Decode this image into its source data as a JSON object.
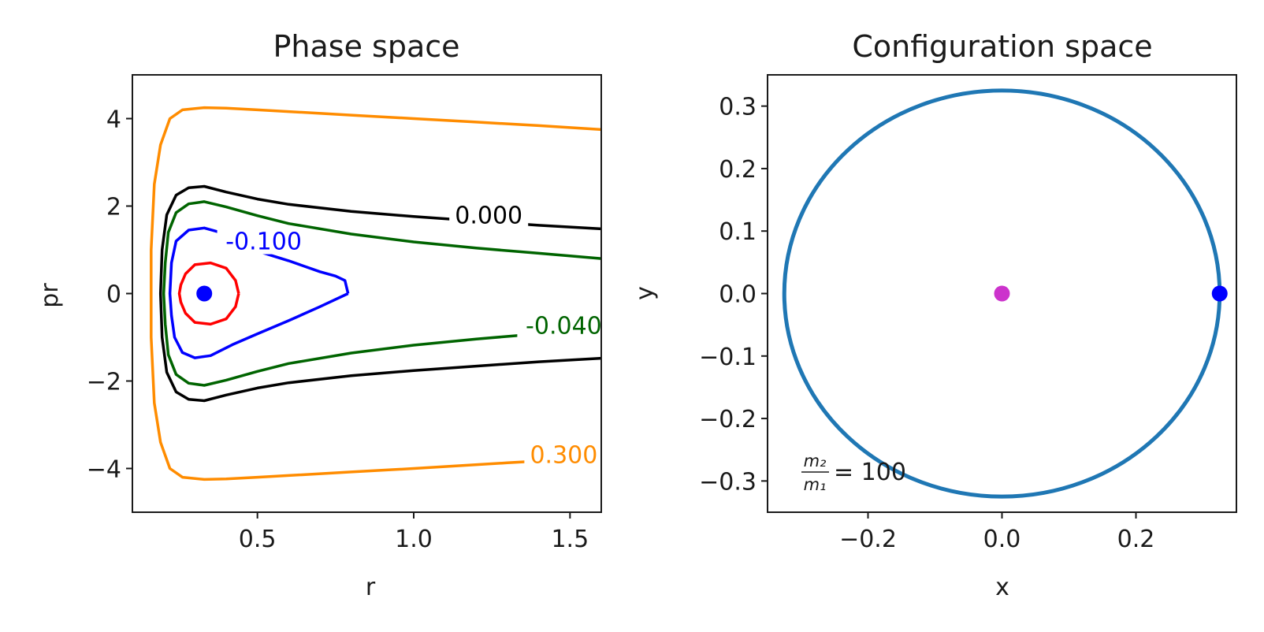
{
  "chart_data": [
    {
      "type": "contour",
      "title": "Phase space",
      "xlabel": "r",
      "ylabel": "pr",
      "xlim": [
        0.1,
        1.6
      ],
      "ylim": [
        -5,
        5
      ],
      "xticks": [
        0.5,
        1.0,
        1.5
      ],
      "xtick_labels": [
        "0.5",
        "1.0",
        "1.5"
      ],
      "yticks": [
        4,
        2,
        0,
        -2,
        -4
      ],
      "ytick_labels": [
        "4",
        "2",
        "0",
        "−2",
        "−4"
      ],
      "grid": false,
      "contours": [
        {
          "level_label": "0.300",
          "color": "#ff8c00",
          "top": [
            [
              1.6,
              3.75
            ],
            [
              1.4,
              3.84
            ],
            [
              1.2,
              3.92
            ],
            [
              1.0,
              4.0
            ],
            [
              0.8,
              4.08
            ],
            [
              0.6,
              4.16
            ],
            [
              0.5,
              4.2
            ],
            [
              0.4,
              4.24
            ],
            [
              0.33,
              4.25
            ],
            [
              0.26,
              4.2
            ],
            [
              0.22,
              4.0
            ],
            [
              0.19,
              3.4
            ],
            [
              0.17,
              2.5
            ],
            [
              0.16,
              1.0
            ],
            [
              0.16,
              0.0
            ]
          ],
          "bottom": [
            [
              1.6,
              -3.75
            ],
            [
              1.3,
              -3.87
            ],
            [
              1.0,
              -4.0
            ],
            [
              0.8,
              -4.08
            ],
            [
              0.6,
              -4.16
            ],
            [
              0.5,
              -4.2
            ],
            [
              0.4,
              -4.24
            ],
            [
              0.33,
              -4.25
            ],
            [
              0.26,
              -4.2
            ],
            [
              0.22,
              -4.0
            ],
            [
              0.19,
              -3.4
            ],
            [
              0.17,
              -2.5
            ],
            [
              0.16,
              -1.0
            ],
            [
              0.16,
              0.0
            ]
          ],
          "label_at": [
            1.48,
            -3.8
          ]
        },
        {
          "level_label": "0.000",
          "color": "#000000",
          "top": [
            [
              1.6,
              1.48
            ],
            [
              1.5,
              1.52
            ],
            [
              1.4,
              1.56
            ],
            [
              1.2,
              1.66
            ],
            [
              1.0,
              1.76
            ],
            [
              0.8,
              1.88
            ],
            [
              0.6,
              2.04
            ],
            [
              0.5,
              2.16
            ],
            [
              0.4,
              2.32
            ],
            [
              0.33,
              2.45
            ],
            [
              0.28,
              2.42
            ],
            [
              0.24,
              2.25
            ],
            [
              0.21,
              1.8
            ],
            [
              0.195,
              1.0
            ],
            [
              0.19,
              0.0
            ]
          ],
          "bottom": [
            [
              1.6,
              -1.48
            ],
            [
              1.4,
              -1.56
            ],
            [
              1.2,
              -1.66
            ],
            [
              1.0,
              -1.76
            ],
            [
              0.8,
              -1.88
            ],
            [
              0.6,
              -2.04
            ],
            [
              0.5,
              -2.16
            ],
            [
              0.4,
              -2.32
            ],
            [
              0.33,
              -2.45
            ],
            [
              0.28,
              -2.42
            ],
            [
              0.24,
              -2.25
            ],
            [
              0.21,
              -1.8
            ],
            [
              0.195,
              -1.0
            ],
            [
              0.19,
              0.0
            ]
          ],
          "label_at": [
            1.24,
            1.68
          ]
        },
        {
          "level_label": "-0.040",
          "color": "#006400",
          "top": [
            [
              1.6,
              0.8
            ],
            [
              1.4,
              0.92
            ],
            [
              1.2,
              1.04
            ],
            [
              1.0,
              1.18
            ],
            [
              0.8,
              1.36
            ],
            [
              0.6,
              1.6
            ],
            [
              0.5,
              1.78
            ],
            [
              0.4,
              1.98
            ],
            [
              0.33,
              2.1
            ],
            [
              0.28,
              2.05
            ],
            [
              0.24,
              1.85
            ],
            [
              0.215,
              1.4
            ],
            [
              0.205,
              0.7
            ],
            [
              0.2,
              0.0
            ]
          ],
          "bottom": [
            [
              1.6,
              -0.8
            ],
            [
              1.4,
              -0.92
            ],
            [
              1.2,
              -1.04
            ],
            [
              1.0,
              -1.18
            ],
            [
              0.8,
              -1.36
            ],
            [
              0.6,
              -1.6
            ],
            [
              0.5,
              -1.78
            ],
            [
              0.4,
              -1.98
            ],
            [
              0.33,
              -2.1
            ],
            [
              0.28,
              -2.05
            ],
            [
              0.24,
              -1.85
            ],
            [
              0.215,
              -1.4
            ],
            [
              0.205,
              -0.7
            ],
            [
              0.2,
              0.0
            ]
          ],
          "label_at": [
            1.48,
            -0.85
          ]
        },
        {
          "level_label": "-0.100",
          "color": "#0000ff",
          "top": [
            [
              0.79,
              0.0
            ],
            [
              0.78,
              0.3
            ],
            [
              0.75,
              0.4
            ],
            [
              0.7,
              0.5
            ],
            [
              0.6,
              0.75
            ],
            [
              0.5,
              0.97
            ],
            [
              0.42,
              1.2
            ],
            [
              0.38,
              1.4
            ],
            [
              0.33,
              1.5
            ],
            [
              0.28,
              1.45
            ],
            [
              0.24,
              1.2
            ],
            [
              0.225,
              0.7
            ],
            [
              0.22,
              0.0
            ]
          ],
          "bottom": [
            [
              0.79,
              0.0
            ],
            [
              0.7,
              -0.3
            ],
            [
              0.6,
              -0.62
            ],
            [
              0.5,
              -0.92
            ],
            [
              0.42,
              -1.17
            ],
            [
              0.35,
              -1.42
            ],
            [
              0.3,
              -1.47
            ],
            [
              0.26,
              -1.35
            ],
            [
              0.235,
              -1.0
            ],
            [
              0.225,
              -0.5
            ],
            [
              0.22,
              0.0
            ]
          ],
          "label_at": [
            0.52,
            1.08
          ]
        },
        {
          "level_label": "",
          "color": "#ff0000",
          "top": [
            [
              0.44,
              0.0
            ],
            [
              0.43,
              0.3
            ],
            [
              0.4,
              0.58
            ],
            [
              0.35,
              0.7
            ],
            [
              0.3,
              0.66
            ],
            [
              0.27,
              0.45
            ],
            [
              0.255,
              0.2
            ],
            [
              0.25,
              0.0
            ]
          ],
          "bottom": [
            [
              0.44,
              0.0
            ],
            [
              0.43,
              -0.3
            ],
            [
              0.4,
              -0.58
            ],
            [
              0.35,
              -0.7
            ],
            [
              0.3,
              -0.66
            ],
            [
              0.27,
              -0.45
            ],
            [
              0.255,
              -0.2
            ],
            [
              0.25,
              0.0
            ]
          ],
          "label_at": null
        }
      ],
      "marker": {
        "x": 0.33,
        "y": 0.0,
        "color": "#0000ff"
      }
    },
    {
      "type": "line",
      "title": "Configuration space",
      "xlabel": "x",
      "ylabel": "y",
      "xlim": [
        -0.35,
        0.35
      ],
      "ylim": [
        -0.35,
        0.35
      ],
      "xticks": [
        -0.2,
        0.0,
        0.2
      ],
      "xtick_labels": [
        "−0.2",
        "0.0",
        "0.2"
      ],
      "yticks": [
        0.3,
        0.2,
        0.1,
        0.0,
        -0.1,
        -0.2,
        -0.3
      ],
      "ytick_labels": [
        "0.3",
        "0.2",
        "0.1",
        "0.0",
        "−0.1",
        "−0.2",
        "−0.3"
      ],
      "grid": false,
      "orbit": {
        "shape": "circle",
        "center": [
          0.0,
          0.0
        ],
        "radius": 0.325,
        "color": "#1f77b4"
      },
      "markers": [
        {
          "name": "central-mass",
          "x": 0.0,
          "y": 0.0,
          "color": "#cc33cc"
        },
        {
          "name": "orbiting-body",
          "x": 0.325,
          "y": 0.0,
          "color": "#0000ff"
        }
      ],
      "annotation": {
        "numerator": "m₂",
        "denominator": "m₁",
        "value": "= 100"
      }
    }
  ]
}
